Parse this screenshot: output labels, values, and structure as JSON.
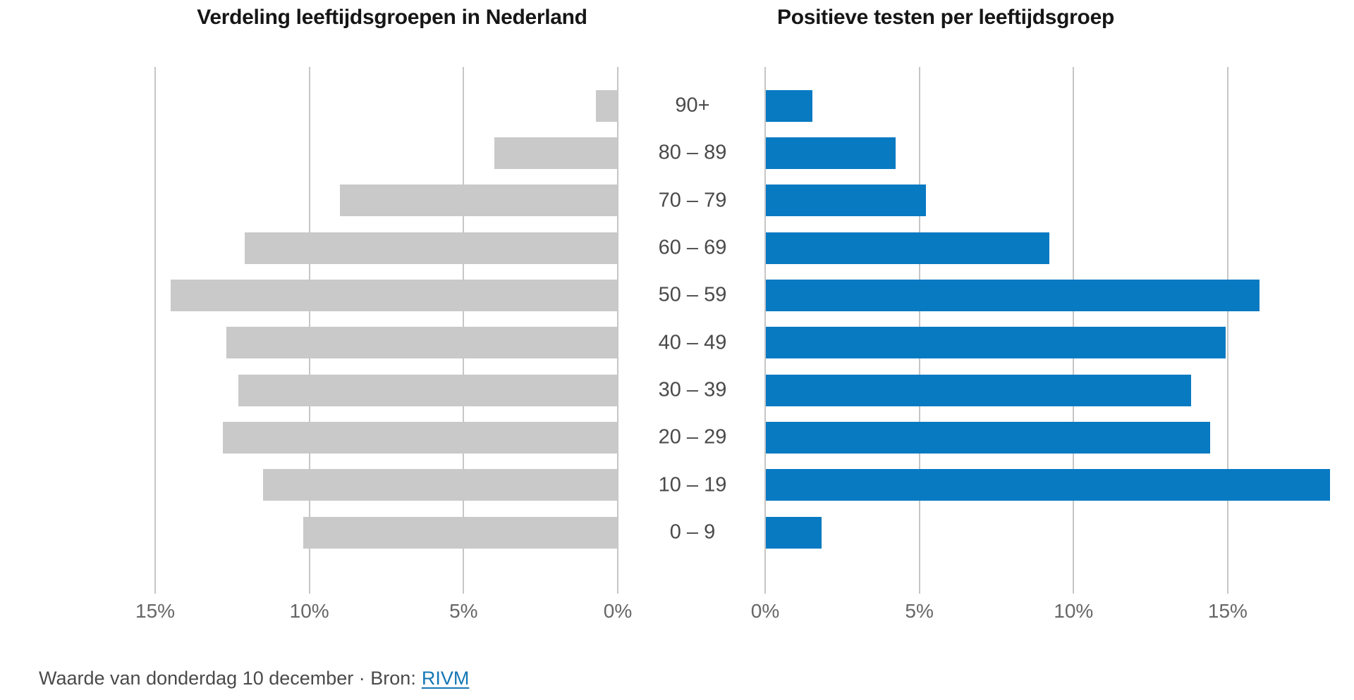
{
  "titles": {
    "left": "Verdeling leeftijdsgroepen in Nederland",
    "right": "Positieve testen per leeftijdsgroep"
  },
  "footer": {
    "text": "Waarde van donderdag 10 december · Bron:",
    "link": "RIVM"
  },
  "colors": {
    "background": "#ffffff",
    "title_text": "#161616",
    "age_label_text": "#4a4a4a",
    "axis_tick_text": "#666666",
    "gridline": "#c6c6c6",
    "population_bar": "#c9c9ca",
    "positive_tests_bar": "#087ac2",
    "footer_text": "#4a4a4a",
    "link_blue": "#1577b5"
  },
  "chart_data": [
    {
      "type": "bar",
      "title": "Verdeling leeftijdsgroepen in Nederland",
      "orientation": "horizontal",
      "axis_direction": "right-to-left",
      "categories": [
        "90+",
        "80 – 89",
        "70 – 79",
        "60 – 69",
        "50 – 59",
        "40 – 49",
        "30 – 39",
        "20 – 29",
        "10 – 19",
        "0 – 9"
      ],
      "values": [
        0.7,
        4.0,
        9.0,
        12.1,
        14.5,
        12.7,
        12.3,
        12.8,
        11.5,
        10.2
      ],
      "unit": "%",
      "tick_labels": [
        "15%",
        "10%",
        "5%",
        "0%"
      ],
      "tick_values": [
        15,
        10,
        5,
        0
      ],
      "xlim": [
        0,
        15
      ],
      "grid": true,
      "legend": "none",
      "bar_color": "#c9c9ca"
    },
    {
      "type": "bar",
      "title": "Positieve testen per leeftijdsgroep",
      "orientation": "horizontal",
      "axis_direction": "left-to-right",
      "categories": [
        "90+",
        "80 – 89",
        "70 – 79",
        "60 – 69",
        "50 – 59",
        "40 – 49",
        "30 – 39",
        "20 – 29",
        "10 – 19",
        "0 – 9"
      ],
      "values": [
        1.5,
        4.2,
        5.2,
        9.2,
        16.0,
        14.9,
        13.8,
        14.4,
        18.3,
        1.8
      ],
      "unit": "%",
      "tick_labels": [
        "0%",
        "5%",
        "10%",
        "15%"
      ],
      "tick_values": [
        0,
        5,
        10,
        15
      ],
      "xlim": [
        0,
        18.6
      ],
      "grid": true,
      "legend": "none",
      "bar_color": "#087ac2"
    }
  ]
}
